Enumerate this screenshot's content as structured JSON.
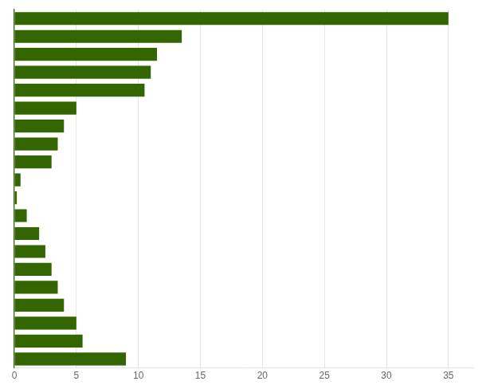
{
  "chart_data": {
    "type": "bar",
    "orientation": "horizontal",
    "categories": [
      null,
      null,
      null,
      null,
      null,
      null,
      null,
      null,
      null,
      null,
      null,
      null,
      null,
      null,
      null,
      null,
      null,
      null,
      null,
      null
    ],
    "values": [
      35.0,
      13.5,
      11.5,
      11.0,
      10.5,
      5.0,
      4.0,
      3.5,
      3.0,
      0.5,
      0.2,
      1.0,
      2.0,
      2.5,
      3.0,
      3.5,
      4.0,
      5.0,
      5.5,
      9.0
    ],
    "color": "#336600",
    "xlim": [
      0,
      37
    ],
    "xticks": [
      0,
      5,
      10,
      15,
      20,
      25,
      30,
      35
    ],
    "grid": true,
    "tick_labels": "x"
  }
}
